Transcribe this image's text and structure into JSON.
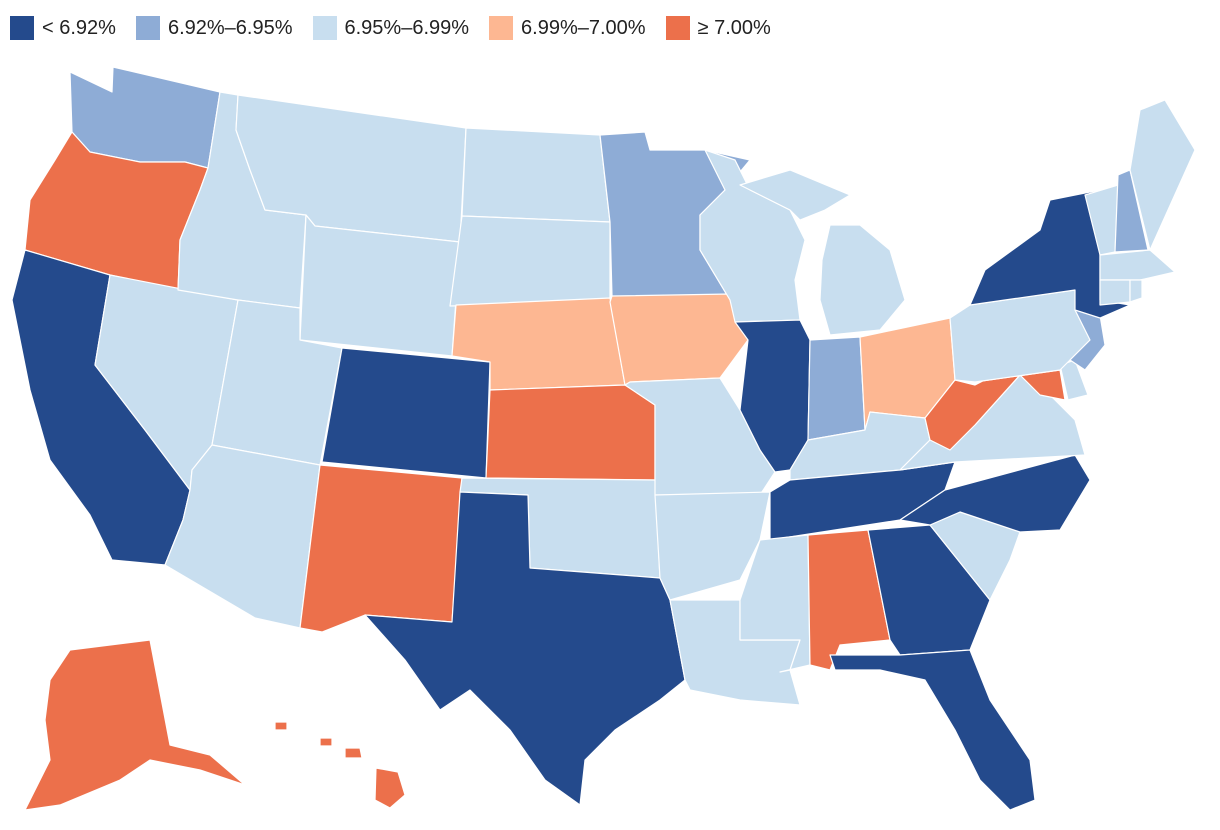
{
  "legend": [
    {
      "label": "< 6.92%",
      "color": "#244a8c"
    },
    {
      "label": "6.92%–6.95%",
      "color": "#8eacd6"
    },
    {
      "label": "6.95%–6.99%",
      "color": "#c8deef"
    },
    {
      "label": "6.99%–7.00%",
      "color": "#fdb792"
    },
    {
      "label": "≥ 7.00%",
      "color": "#ec704b"
    }
  ],
  "states": {
    "WA": 1,
    "OR": 4,
    "CA": 0,
    "NV": 2,
    "ID": 2,
    "MT": 2,
    "WY": 2,
    "UT": 2,
    "AZ": 2,
    "CO": 0,
    "NM": 4,
    "ND": 2,
    "SD": 2,
    "NE": 3,
    "KS": 4,
    "OK": 2,
    "TX": 0,
    "MN": 1,
    "IA": 3,
    "MO": 2,
    "AR": 2,
    "LA": 2,
    "WI": 2,
    "IL": 0,
    "MI": 2,
    "IN": 1,
    "OH": 3,
    "KY": 2,
    "TN": 0,
    "MS": 2,
    "AL": 4,
    "GA": 0,
    "FL": 0,
    "SC": 2,
    "NC": 0,
    "VA": 2,
    "WV": 4,
    "MD": 4,
    "DE": 2,
    "PA": 2,
    "NJ": 1,
    "NY": 0,
    "CT": 2,
    "RI": 2,
    "MA": 2,
    "VT": 2,
    "NH": 1,
    "ME": 2,
    "AK": 4,
    "HI": 4
  }
}
